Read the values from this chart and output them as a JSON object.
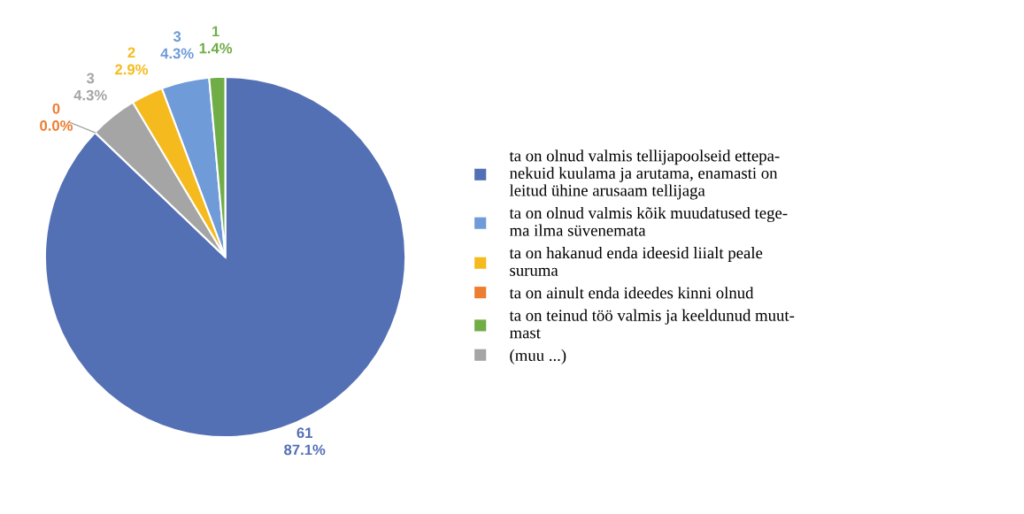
{
  "chart_data": {
    "type": "pie",
    "categories": [
      "ta on olnud valmis tellijapoolseid ettepa-\nnekuid kuulama ja arutama, enamasti on\nleitud ühine arusaam tellijaga",
      "ta on ainult enda ideedes kinni olnud",
      "(muu ...)",
      "ta on hakanud enda ideesid liialt peale\nsuruma",
      "ta on olnud valmis kõik muudatused tege-\nma ilma süvenemata",
      "ta on teinud töö valmis ja keeldunud muut-\nmast"
    ],
    "values": [
      61,
      0,
      3,
      2,
      3,
      1
    ],
    "colors": [
      "#5470b5",
      "#ed7d31",
      "#a5a5a5",
      "#f5bb1e",
      "#6f9bd8",
      "#70ad47"
    ],
    "value_labels": [
      "61\n87.1%",
      "0\n0.0%",
      "3\n4.3%",
      "2\n2.9%",
      "3\n4.3%",
      "1\n1.4%"
    ],
    "legend": "right"
  }
}
